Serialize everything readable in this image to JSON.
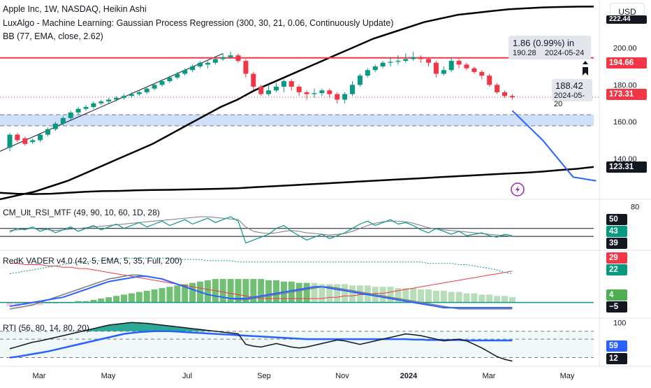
{
  "header": {
    "symbol_line": "Apple Inc, 1W, NASDAQ, Heikin Ashi",
    "indicator_1": "LuxAlgo - Machine Learning: Gaussian Process Regression (300, 30, 21, 0.06, Continuously Update)",
    "indicator_2": "BB (77, EMA, close, 2.62)",
    "currency": "USD"
  },
  "panes": {
    "rsi_title": "CM_Ult_RSI_MTF (49, 90, 10, 60, 1D, 28)",
    "vader_title": "RedK VADER v4.0 (42, 5, EMA, 5, 35, Full, 200)",
    "rti_title": "RTI (56, 80, 14, 80, 20)"
  },
  "tooltips": {
    "measure_main": "1.86 (0.99%) in",
    "measure_price": "190.28",
    "measure_date": "2024-05-24",
    "cursor_price": "188.42",
    "cursor_date": "2024-05-20"
  },
  "price_labels": {
    "resistance": "194.66",
    "current": "173.31",
    "bb_upper_edge": "222.44",
    "bb_lower": "123.31",
    "rsi_top": "50",
    "rsi_mid": "43",
    "rsi_low": "39",
    "vader_red": "29",
    "vader_green": "22",
    "vader_pos": "4",
    "vader_neg": "−5",
    "rti_blue": "59",
    "rti_black": "12"
  },
  "axis": {
    "price_ticks": [
      "200.00",
      "180.00",
      "160.00",
      "140.00"
    ],
    "rsi_tick": "80",
    "rti_tick": "100",
    "time_ticks": [
      "Mar",
      "May",
      "Jul",
      "Sep",
      "Nov",
      "2024",
      "Mar",
      "May"
    ]
  },
  "colors": {
    "bull": "#089981",
    "bear": "#f23645",
    "resistance": "#f23645",
    "forecast": "#2962ff",
    "band": "#000000",
    "zone": "#bbd2f8"
  },
  "chart_data": {
    "type": "candlestick",
    "title": "Apple Inc, 1W, NASDAQ, Heikin Ashi",
    "y_range": [
      118,
      226
    ],
    "resistance_level": 194.66,
    "current_price": 173.31,
    "demand_zone": [
      152,
      159
    ],
    "candles": [
      {
        "o": 146,
        "c": 153,
        "h": 154,
        "l": 144
      },
      {
        "o": 153,
        "c": 150,
        "h": 154,
        "l": 149
      },
      {
        "o": 151,
        "c": 148,
        "h": 152,
        "l": 147
      },
      {
        "o": 149,
        "c": 150,
        "h": 151,
        "l": 148
      },
      {
        "o": 150,
        "c": 153,
        "h": 154,
        "l": 149
      },
      {
        "o": 153,
        "c": 156,
        "h": 157,
        "l": 152
      },
      {
        "o": 156,
        "c": 159,
        "h": 160,
        "l": 155
      },
      {
        "o": 159,
        "c": 162,
        "h": 163,
        "l": 158
      },
      {
        "o": 162,
        "c": 165,
        "h": 166,
        "l": 161
      },
      {
        "o": 165,
        "c": 167,
        "h": 168,
        "l": 164
      },
      {
        "o": 167,
        "c": 168,
        "h": 169,
        "l": 166
      },
      {
        "o": 168,
        "c": 170,
        "h": 171,
        "l": 167
      },
      {
        "o": 170,
        "c": 171,
        "h": 172,
        "l": 169
      },
      {
        "o": 171,
        "c": 172,
        "h": 173,
        "l": 170
      },
      {
        "o": 172,
        "c": 173,
        "h": 174,
        "l": 171
      },
      {
        "o": 173,
        "c": 174,
        "h": 175,
        "l": 172
      },
      {
        "o": 174,
        "c": 175,
        "h": 176,
        "l": 173
      },
      {
        "o": 175,
        "c": 176,
        "h": 177,
        "l": 174
      },
      {
        "o": 176,
        "c": 178,
        "h": 179,
        "l": 175
      },
      {
        "o": 178,
        "c": 180,
        "h": 181,
        "l": 177
      },
      {
        "o": 180,
        "c": 182,
        "h": 183,
        "l": 179
      },
      {
        "o": 182,
        "c": 184,
        "h": 185,
        "l": 181
      },
      {
        "o": 184,
        "c": 186,
        "h": 187,
        "l": 183
      },
      {
        "o": 186,
        "c": 188,
        "h": 189,
        "l": 185
      },
      {
        "o": 188,
        "c": 190,
        "h": 191,
        "l": 187
      },
      {
        "o": 190,
        "c": 192,
        "h": 193,
        "l": 189
      },
      {
        "o": 191,
        "c": 192,
        "h": 193,
        "l": 189
      },
      {
        "o": 192,
        "c": 194,
        "h": 195,
        "l": 191
      },
      {
        "o": 194,
        "c": 195,
        "h": 197,
        "l": 193
      },
      {
        "o": 195,
        "c": 196,
        "h": 198,
        "l": 194
      },
      {
        "o": 196,
        "c": 193,
        "h": 197,
        "l": 192
      },
      {
        "o": 193,
        "c": 186,
        "h": 194,
        "l": 184
      },
      {
        "o": 186,
        "c": 179,
        "h": 187,
        "l": 177
      },
      {
        "o": 179,
        "c": 175,
        "h": 180,
        "l": 174
      },
      {
        "o": 175,
        "c": 177,
        "h": 180,
        "l": 174
      },
      {
        "o": 177,
        "c": 179,
        "h": 181,
        "l": 176
      },
      {
        "o": 179,
        "c": 182,
        "h": 183,
        "l": 176
      },
      {
        "o": 182,
        "c": 179,
        "h": 183,
        "l": 177
      },
      {
        "o": 179,
        "c": 176,
        "h": 180,
        "l": 174
      },
      {
        "o": 176,
        "c": 175,
        "h": 177,
        "l": 172
      },
      {
        "o": 175,
        "c": 175.5,
        "h": 178,
        "l": 173
      },
      {
        "o": 175.5,
        "c": 177,
        "h": 178,
        "l": 174
      },
      {
        "o": 177,
        "c": 175,
        "h": 178,
        "l": 173
      },
      {
        "o": 175,
        "c": 172,
        "h": 176,
        "l": 170
      },
      {
        "o": 172,
        "c": 175,
        "h": 176,
        "l": 170
      },
      {
        "o": 175,
        "c": 180,
        "h": 182,
        "l": 174
      },
      {
        "o": 180,
        "c": 185,
        "h": 186,
        "l": 179
      },
      {
        "o": 185,
        "c": 188,
        "h": 189,
        "l": 184
      },
      {
        "o": 188,
        "c": 190,
        "h": 191,
        "l": 187
      },
      {
        "o": 190,
        "c": 192,
        "h": 193,
        "l": 189
      },
      {
        "o": 192,
        "c": 192.5,
        "h": 195,
        "l": 190
      },
      {
        "o": 192.5,
        "c": 193,
        "h": 196,
        "l": 191
      },
      {
        "o": 193,
        "c": 194,
        "h": 197,
        "l": 192
      },
      {
        "o": 194,
        "c": 195,
        "h": 198,
        "l": 193
      },
      {
        "o": 195,
        "c": 194,
        "h": 196,
        "l": 192
      },
      {
        "o": 194,
        "c": 192,
        "h": 195,
        "l": 190
      },
      {
        "o": 192,
        "c": 186,
        "h": 193,
        "l": 184
      },
      {
        "o": 186,
        "c": 188,
        "h": 190,
        "l": 185
      },
      {
        "o": 188,
        "c": 193,
        "h": 195,
        "l": 187
      },
      {
        "o": 193,
        "c": 191,
        "h": 194,
        "l": 189
      },
      {
        "o": 191,
        "c": 189,
        "h": 192,
        "l": 188
      },
      {
        "o": 189,
        "c": 187,
        "h": 190,
        "l": 186
      },
      {
        "o": 187,
        "c": 185,
        "h": 188,
        "l": 183
      },
      {
        "o": 185,
        "c": 180,
        "h": 186,
        "l": 179
      },
      {
        "o": 180,
        "c": 176,
        "h": 181,
        "l": 175
      },
      {
        "o": 176,
        "c": 174,
        "h": 177,
        "l": 173
      },
      {
        "o": 174,
        "c": 173.3,
        "h": 175,
        "l": 172
      }
    ],
    "bb_upper": [
      118,
      120,
      122,
      125,
      128,
      132,
      136,
      140,
      144,
      148,
      153,
      158,
      163,
      168,
      172,
      177,
      181,
      185,
      189,
      193,
      197,
      201,
      205,
      208,
      211,
      214,
      216,
      218,
      219,
      220,
      221,
      221.5,
      222,
      222.2,
      222.4,
      222.44
    ],
    "bb_lower": [
      121.5,
      121,
      120.8,
      121,
      121.5,
      122,
      122.4,
      122.5,
      122.8,
      123,
      123.1,
      123.3,
      123.5,
      123.7,
      124,
      124.5,
      125,
      125.5,
      126,
      126.5,
      127,
      127.5,
      128,
      128.5,
      129,
      129.5,
      130,
      130.5,
      131,
      131.5,
      132,
      132.4,
      133,
      133.8,
      134.5,
      135.5
    ],
    "forecast": [
      {
        "i": 66,
        "v": 166
      },
      {
        "i": 70,
        "v": 150
      },
      {
        "i": 74,
        "v": 130
      },
      {
        "i": 77,
        "v": 128
      }
    ],
    "rsi": {
      "range": [
        20,
        90
      ],
      "levels": [
        50,
        39
      ],
      "fast": [
        45,
        50,
        48,
        52,
        46,
        50,
        44,
        48,
        52,
        46,
        50,
        54,
        48,
        52,
        56,
        50,
        54,
        58,
        52,
        56,
        60,
        54,
        58,
        62,
        56,
        60,
        64,
        58,
        62,
        66,
        60,
        30,
        34,
        38,
        42,
        50,
        54,
        46,
        40,
        34,
        38,
        42,
        36,
        40,
        44,
        50,
        56,
        60,
        54,
        58,
        62,
        56,
        58,
        54,
        48,
        44,
        50,
        46,
        42,
        46,
        40,
        42,
        44,
        40,
        38,
        42,
        40
      ],
      "slow": [
        47,
        48,
        49,
        50,
        49,
        48,
        47,
        48,
        49,
        50,
        51,
        52,
        53,
        54,
        55,
        56,
        57,
        58,
        59,
        60,
        61,
        62,
        63,
        64,
        65,
        66,
        66,
        65,
        64,
        63,
        62,
        52,
        46,
        44,
        43,
        44,
        46,
        47,
        46,
        44,
        43,
        42,
        41,
        42,
        43,
        46,
        50,
        54,
        57,
        59,
        60,
        60,
        59,
        57,
        54,
        51,
        49,
        48,
        47,
        46,
        45,
        44,
        43,
        42,
        41,
        40,
        39
      ]
    },
    "vader": {
      "range": [
        -12,
        40
      ],
      "red": [
        30,
        30,
        29,
        29,
        29,
        28,
        28,
        27,
        27,
        26,
        26,
        25,
        24,
        23,
        22,
        21,
        20,
        19,
        18,
        17,
        16,
        15,
        14,
        13,
        12,
        11,
        10,
        9,
        8,
        7,
        6,
        5,
        4,
        3,
        3,
        3,
        3,
        3,
        3,
        3,
        3,
        3,
        4,
        4,
        5,
        5,
        6,
        6,
        7,
        7,
        8,
        9,
        10,
        11,
        12,
        13,
        14,
        15,
        16,
        17,
        18,
        19,
        20,
        21,
        22,
        23,
        24
      ],
      "green": [
        22,
        23,
        24,
        25,
        26,
        27,
        28,
        29,
        30,
        31,
        31,
        32,
        32,
        33,
        33,
        34,
        34,
        34,
        34,
        34,
        34,
        34,
        33,
        33,
        33,
        33,
        32,
        32,
        32,
        32,
        31,
        31,
        31,
        31,
        31,
        31,
        31,
        31,
        31,
        31,
        31,
        31,
        31,
        31,
        31,
        31,
        31,
        31,
        31,
        31,
        31,
        31,
        31,
        31,
        31,
        30,
        30,
        30,
        30,
        29,
        29,
        28,
        27,
        26,
        25,
        23,
        22
      ],
      "hist": [
        -3,
        -3,
        -2,
        -2,
        -2,
        -1,
        -1,
        0,
        0,
        1,
        1,
        2,
        3,
        4,
        5,
        6,
        7,
        8,
        9,
        10,
        11,
        12,
        13,
        14,
        15,
        16,
        17,
        18,
        18,
        18,
        18,
        18,
        18,
        18,
        17,
        17,
        16,
        16,
        15,
        15,
        15,
        14,
        14,
        14,
        14,
        13,
        13,
        13,
        12,
        12,
        12,
        11,
        11,
        11,
        10,
        10,
        9,
        9,
        8,
        8,
        7,
        7,
        6,
        6,
        5,
        5,
        4
      ],
      "gray": [
        -5,
        -4,
        -3,
        -2,
        0,
        2,
        4,
        6,
        8,
        10,
        12,
        14,
        16,
        18,
        19,
        20,
        21,
        21,
        20,
        19,
        18,
        16,
        14,
        12,
        10,
        8,
        6,
        5,
        4,
        3,
        2,
        2,
        3,
        4,
        5,
        6,
        7,
        8,
        9,
        10,
        11,
        12,
        12,
        11,
        10,
        9,
        8,
        7,
        6,
        5,
        4,
        3,
        2,
        1,
        0,
        -1,
        -2,
        -3,
        -4,
        -5,
        -5,
        -5,
        -5,
        -5,
        -5,
        -5,
        -5
      ],
      "blue": [
        -3,
        -2,
        -1,
        0,
        1,
        2,
        3,
        4,
        6,
        8,
        10,
        12,
        14,
        16,
        17,
        18,
        19,
        20,
        20,
        19,
        18,
        16,
        14,
        12,
        10,
        8,
        6,
        5,
        4,
        3,
        3,
        3,
        4,
        5,
        6,
        7,
        8,
        9,
        10,
        11,
        12,
        12,
        11,
        10,
        9,
        8,
        7,
        6,
        5,
        4,
        3,
        2,
        1,
        0,
        -1,
        -2,
        -3,
        -4,
        -4,
        -4,
        -4,
        -4,
        -4,
        -4,
        -4,
        -4,
        -4
      ]
    },
    "rti": {
      "range": [
        0,
        110
      ],
      "black": [
        40,
        45,
        50,
        55,
        58,
        62,
        66,
        70,
        74,
        78,
        82,
        86,
        90,
        94,
        96,
        98,
        100,
        99,
        98,
        96,
        94,
        92,
        90,
        88,
        86,
        84,
        82,
        80,
        78,
        76,
        74,
        50,
        46,
        44,
        48,
        52,
        48,
        44,
        42,
        44,
        48,
        52,
        56,
        60,
        58,
        54,
        50,
        54,
        58,
        62,
        66,
        70,
        74,
        72,
        70,
        66,
        62,
        58,
        60,
        62,
        58,
        50,
        42,
        32,
        22,
        16,
        12
      ],
      "blue": [
        20,
        22,
        25,
        28,
        31,
        34,
        38,
        42,
        46,
        50,
        54,
        58,
        62,
        66,
        70,
        74,
        76,
        78,
        79,
        80,
        80,
        80,
        79,
        78,
        77,
        76,
        75,
        74,
        73,
        72,
        71,
        70,
        69,
        68,
        67,
        66,
        65,
        64,
        63,
        62,
        62,
        62,
        62,
        62,
        62,
        62,
        62,
        62,
        62,
        62,
        62,
        62,
        62,
        61,
        61,
        60,
        60,
        60,
        60,
        60,
        59,
        59,
        59,
        59,
        59,
        59,
        59
      ]
    }
  }
}
